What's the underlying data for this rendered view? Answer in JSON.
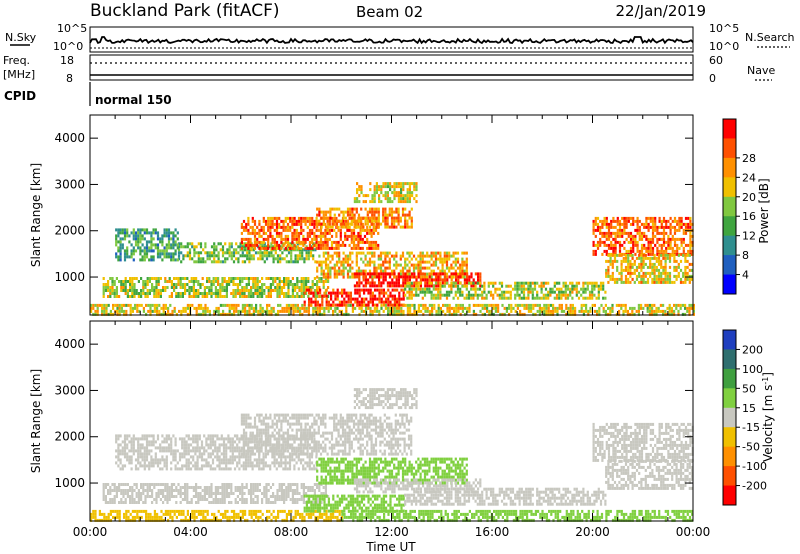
{
  "header": {
    "station": "Buckland Park (fitACF)",
    "beam": "Beam 02",
    "date": "22/Jan/2019"
  },
  "meta_panel": {
    "nsky_label": "N.Sky",
    "nsearch_label": "N.Search",
    "freq_label_1": "Freq.",
    "freq_label_2": "[MHz]",
    "nave_label": "Nave",
    "cpid_label": "CPID",
    "cpid_value": "normal 150",
    "noise_ticks": [
      "10^5",
      "10^0"
    ],
    "freq_ticks": [
      "18",
      "8"
    ],
    "nave_ticks": [
      "60",
      "0"
    ]
  },
  "chart_data": [
    {
      "type": "heatmap",
      "panel": "power",
      "xlabel": "Time UT",
      "ylabel": "Slant Range [km]",
      "x_ticks": [
        "00:00",
        "04:00",
        "08:00",
        "12:00",
        "16:00",
        "20:00",
        "00:00"
      ],
      "y_ticks": [
        1000,
        2000,
        3000,
        4000
      ],
      "xlim_hours": [
        0,
        24
      ],
      "ylim_km": [
        180,
        4500
      ],
      "colorbar": {
        "label": "Power [dB]",
        "ticks": [
          4,
          8,
          12,
          16,
          20,
          24,
          28
        ],
        "range": [
          0,
          30
        ],
        "colors": [
          "#0000ff",
          "#1f5fbf",
          "#2f8f8f",
          "#3fa53f",
          "#80c840",
          "#f0c000",
          "#ff9000",
          "#ff5000",
          "#ff0000"
        ]
      },
      "regions": [
        {
          "t0": 0.0,
          "t1": 24.0,
          "r0": 200,
          "r1": 420,
          "level": 18
        },
        {
          "t0": 0.5,
          "t1": 9.5,
          "r0": 600,
          "r1": 1000,
          "level": 16
        },
        {
          "t0": 3.5,
          "t1": 9.0,
          "r0": 1300,
          "r1": 1750,
          "level": 14
        },
        {
          "t0": 1.0,
          "t1": 3.5,
          "r0": 1400,
          "r1": 2050,
          "level": 11
        },
        {
          "t0": 6.0,
          "t1": 11.5,
          "r0": 1600,
          "r1": 2300,
          "level": 24
        },
        {
          "t0": 9.0,
          "t1": 12.8,
          "r0": 2100,
          "r1": 2500,
          "level": 22
        },
        {
          "t0": 10.5,
          "t1": 13.0,
          "r0": 2650,
          "r1": 3050,
          "level": 18
        },
        {
          "t0": 9.0,
          "t1": 15.0,
          "r0": 1000,
          "r1": 1550,
          "level": 20
        },
        {
          "t0": 10.5,
          "t1": 15.5,
          "r0": 800,
          "r1": 1100,
          "level": 28
        },
        {
          "t0": 8.5,
          "t1": 12.5,
          "r0": 400,
          "r1": 750,
          "level": 27
        },
        {
          "t0": 12.5,
          "t1": 20.5,
          "r0": 550,
          "r1": 900,
          "level": 16
        },
        {
          "t0": 20.0,
          "t1": 24.0,
          "r0": 1500,
          "r1": 2300,
          "level": 24
        },
        {
          "t0": 20.5,
          "t1": 24.0,
          "r0": 900,
          "r1": 1500,
          "level": 19
        }
      ]
    },
    {
      "type": "heatmap",
      "panel": "velocity",
      "xlabel": "Time UT",
      "ylabel": "Slant Range [km]",
      "x_ticks": [
        "00:00",
        "04:00",
        "08:00",
        "12:00",
        "16:00",
        "20:00",
        "00:00"
      ],
      "y_ticks": [
        1000,
        2000,
        3000,
        4000
      ],
      "xlim_hours": [
        0,
        24
      ],
      "ylim_km": [
        180,
        4500
      ],
      "colorbar": {
        "label": "Velocity [m s^-1]",
        "ticks": [
          200,
          100,
          50,
          15,
          -15,
          -50,
          -100,
          -200
        ],
        "colors": [
          "#1f3fbf",
          "#2f6f6f",
          "#3f9f3f",
          "#80d040",
          "#c8c8c0",
          "#f0c000",
          "#ff9000",
          "#ff5000",
          "#ff0000"
        ]
      },
      "regions": [
        {
          "t0": 0.0,
          "t1": 10.0,
          "r0": 200,
          "r1": 420,
          "v": -30
        },
        {
          "t0": 10.0,
          "t1": 24.0,
          "r0": 200,
          "r1": 420,
          "v": 30
        },
        {
          "t0": 0.5,
          "t1": 9.5,
          "r0": 600,
          "r1": 1000,
          "v": 0
        },
        {
          "t0": 1.0,
          "t1": 9.0,
          "r0": 1300,
          "r1": 2050,
          "v": 0
        },
        {
          "t0": 6.0,
          "t1": 12.8,
          "r0": 1600,
          "r1": 2500,
          "v": 0
        },
        {
          "t0": 10.5,
          "t1": 13.0,
          "r0": 2650,
          "r1": 3050,
          "v": 0
        },
        {
          "t0": 9.0,
          "t1": 15.0,
          "r0": 1000,
          "r1": 1550,
          "v": 30
        },
        {
          "t0": 10.5,
          "t1": 15.5,
          "r0": 800,
          "r1": 1100,
          "v": 0
        },
        {
          "t0": 8.5,
          "t1": 12.5,
          "r0": 400,
          "r1": 750,
          "v": 40
        },
        {
          "t0": 12.5,
          "t1": 20.5,
          "r0": 550,
          "r1": 900,
          "v": 0
        },
        {
          "t0": 20.0,
          "t1": 24.0,
          "r0": 1500,
          "r1": 2300,
          "v": 0
        },
        {
          "t0": 20.5,
          "t1": 24.0,
          "r0": 900,
          "r1": 1500,
          "v": 0
        }
      ]
    }
  ]
}
